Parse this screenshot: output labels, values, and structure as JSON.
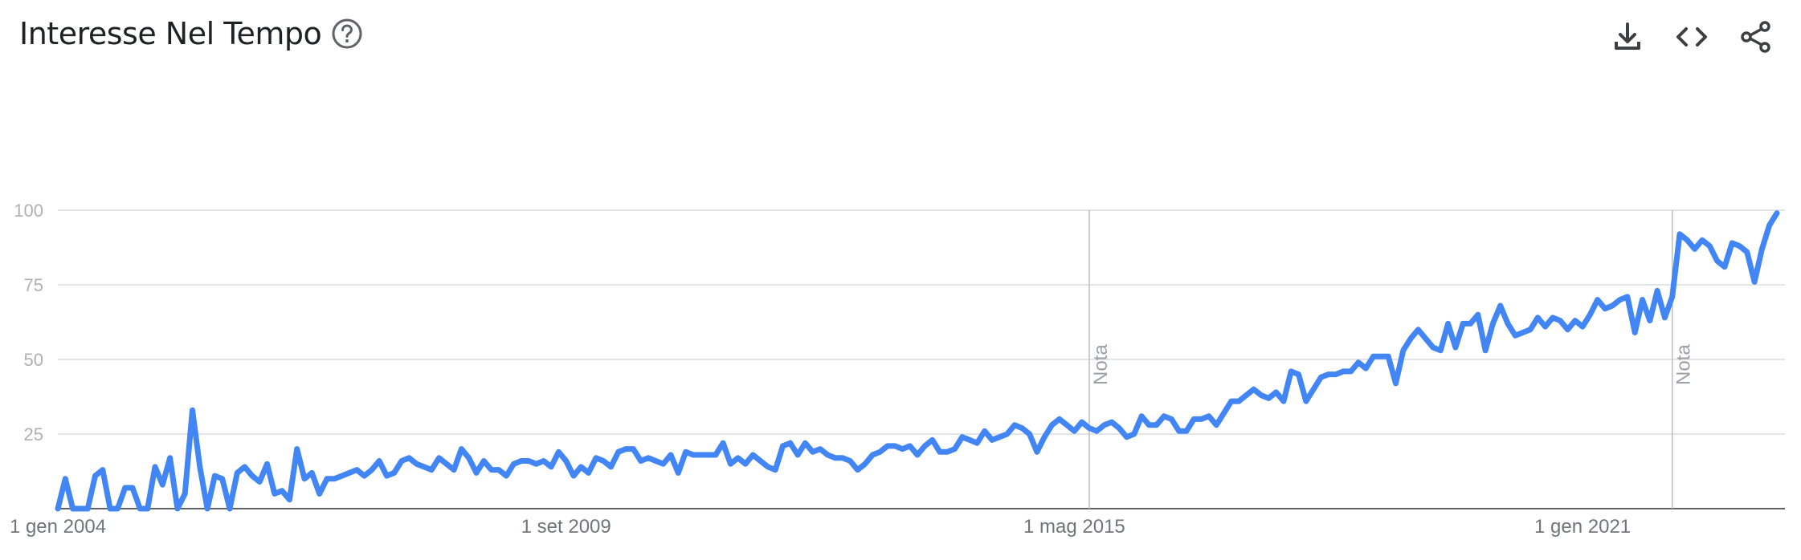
{
  "header": {
    "title": "Interesse Nel Tempo",
    "help_icon": "help-circle-icon",
    "actions": [
      {
        "icon": "download-icon"
      },
      {
        "icon": "embed-code-icon"
      },
      {
        "icon": "share-icon"
      }
    ]
  },
  "colors": {
    "line": "#4285f4",
    "grid": "#dadce0",
    "axis": "#5f6368"
  },
  "chart_data": {
    "type": "line",
    "ylim": [
      0,
      100
    ],
    "yticks": [
      25,
      50,
      75,
      100
    ],
    "grid": true,
    "xticks": [
      "1 gen 2004",
      "1 set 2009",
      "1 mag 2015",
      "1 gen 2021"
    ],
    "annotations": [
      {
        "date": "2015-07",
        "text": "Nota"
      },
      {
        "date": "2022-01",
        "text": "Nota"
      }
    ],
    "series": [
      {
        "start": "2004-01",
        "frequency": "monthly",
        "values": [
          0,
          10,
          0,
          0,
          0,
          11,
          13,
          0,
          0,
          7,
          7,
          0,
          0,
          14,
          8,
          17,
          0,
          5,
          33,
          14,
          0,
          11,
          10,
          0,
          12,
          14,
          11,
          9,
          15,
          5,
          6,
          3,
          20,
          10,
          12,
          5,
          10,
          10,
          11,
          12,
          13,
          11,
          13,
          16,
          11,
          12,
          16,
          17,
          15,
          14,
          13,
          17,
          15,
          13,
          20,
          17,
          12,
          16,
          13,
          13,
          11,
          15,
          16,
          16,
          15,
          16,
          14,
          19,
          16,
          11,
          14,
          12,
          17,
          16,
          14,
          19,
          20,
          20,
          16,
          17,
          16,
          15,
          18,
          12,
          19,
          18,
          18,
          18,
          18,
          22,
          15,
          17,
          15,
          18,
          16,
          14,
          13,
          21,
          22,
          18,
          22,
          19,
          20,
          18,
          17,
          17,
          16,
          13,
          15,
          18,
          19,
          21,
          21,
          20,
          21,
          18,
          21,
          23,
          19,
          19,
          20,
          24,
          23,
          22,
          26,
          23,
          24,
          25,
          28,
          27,
          25,
          19,
          24,
          28,
          30,
          28,
          26,
          29,
          27,
          26,
          28,
          29,
          27,
          24,
          25,
          31,
          28,
          28,
          31,
          30,
          26,
          26,
          30,
          30,
          31,
          28,
          32,
          36,
          36,
          38,
          40,
          38,
          37,
          39,
          36,
          46,
          45,
          36,
          40,
          44,
          45,
          45,
          46,
          46,
          49,
          47,
          51,
          51,
          51,
          42,
          53,
          57,
          60,
          57,
          54,
          53,
          62,
          54,
          62,
          62,
          65,
          53,
          62,
          68,
          62,
          58,
          59,
          60,
          64,
          61,
          64,
          63,
          60,
          63,
          61,
          65,
          70,
          67,
          68,
          70,
          71,
          59,
          70,
          63,
          73,
          64,
          71,
          92,
          90,
          87,
          90,
          88,
          83,
          81,
          89,
          88,
          86,
          76,
          87,
          95,
          99
        ]
      }
    ]
  }
}
